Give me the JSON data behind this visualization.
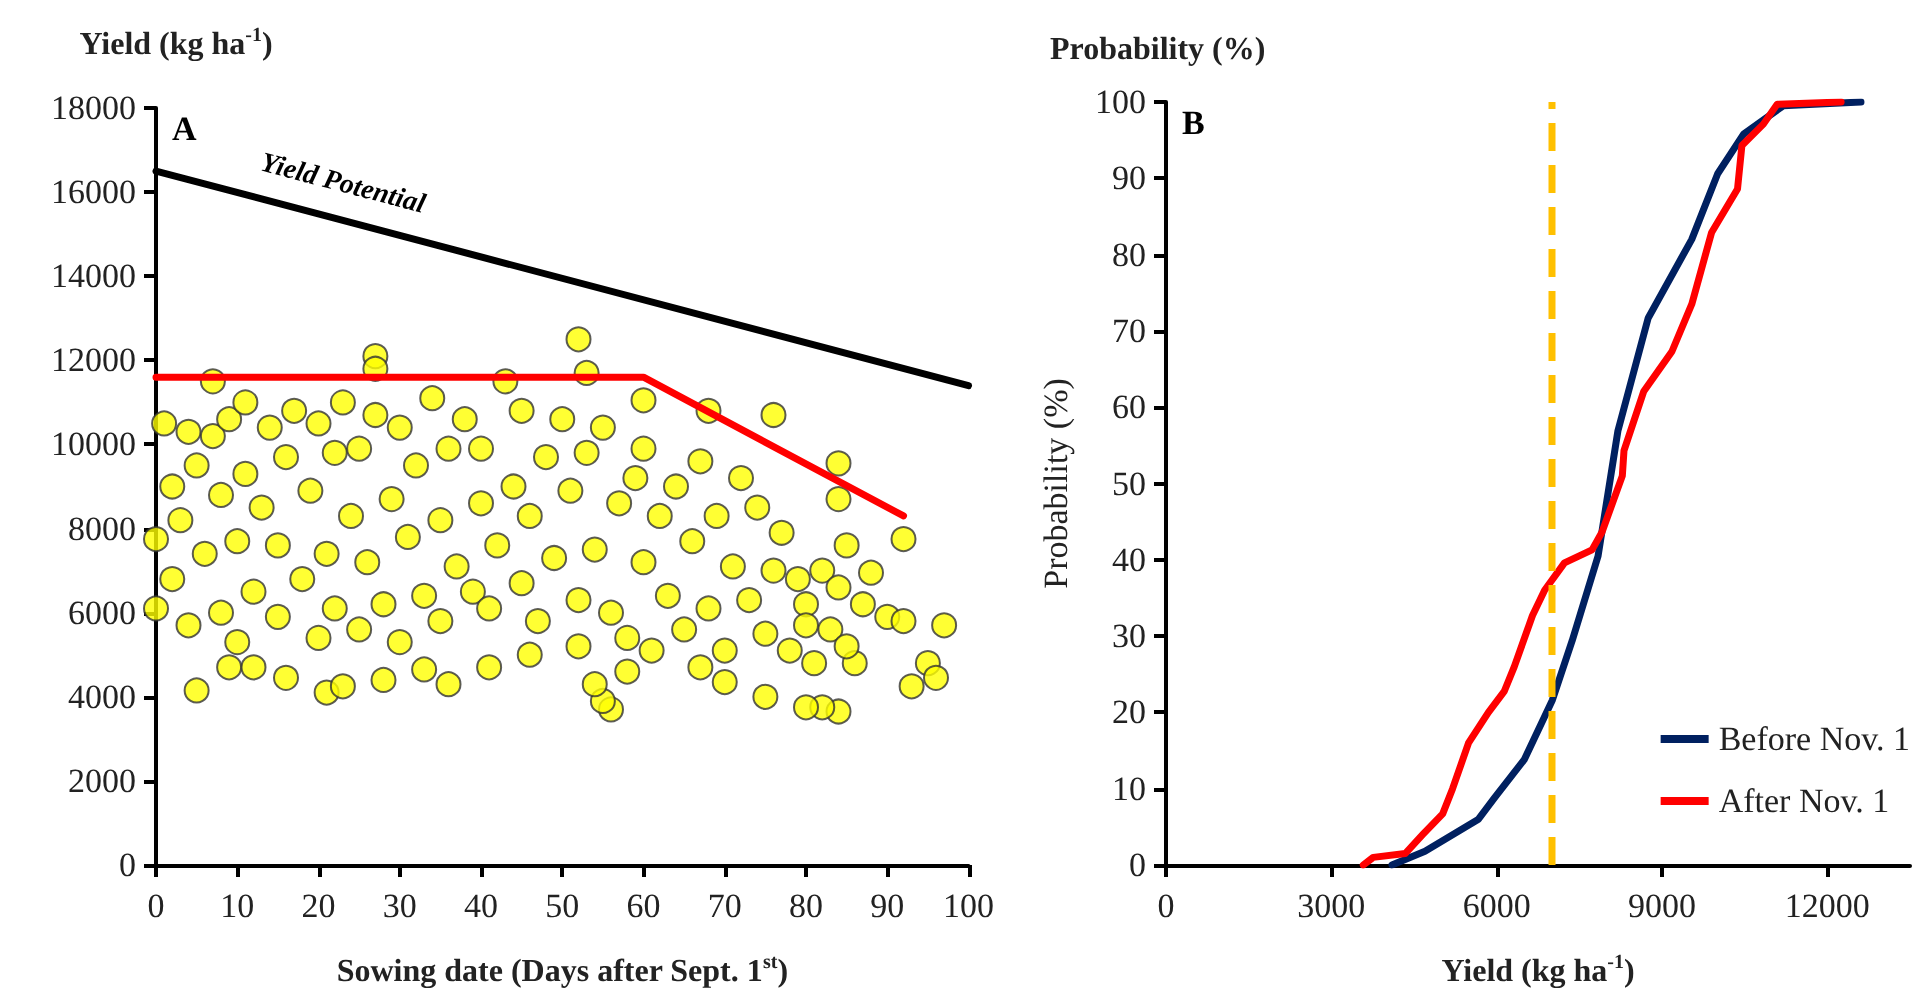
{
  "chart_data": [
    {
      "type": "scatter",
      "ylabel": "Yield (kg ha$^{-1}$)",
      "xlabel": "Sowing date (Days after Sept. 1$^{st}$)",
      "annotations": [
        "A"
      ],
      "xlim": [
        0,
        100
      ],
      "xticks": [
        0,
        10,
        20,
        30,
        40,
        50,
        60,
        70,
        80,
        90,
        100
      ],
      "ylim": [
        0,
        18000
      ],
      "yticks": [
        0,
        2000,
        4000,
        6000,
        8000,
        10000,
        12000,
        14000,
        16000,
        18000
      ],
      "grid": false,
      "legend": false,
      "marker": "circle",
      "series": [
        {
          "color": "#ffff00",
          "x": [
            5,
            0,
            0,
            27,
            27,
            52,
            53,
            7,
            60,
            68,
            76,
            84,
            92,
            97,
            93,
            95,
            96,
            90,
            92,
            88,
            86,
            84,
            82,
            80,
            75,
            56,
            55,
            41,
            36,
            21,
            23,
            16,
            9,
            12,
            28,
            33,
            46,
            58,
            70,
            67,
            1,
            2,
            2,
            3,
            4,
            4,
            5,
            6,
            7,
            8,
            8,
            9,
            10,
            10,
            11,
            11,
            12,
            13,
            14,
            15,
            15,
            16,
            17,
            18,
            19,
            20,
            20,
            21,
            22,
            22,
            23,
            24,
            25,
            25,
            26,
            27,
            28,
            29,
            30,
            30,
            31,
            32,
            33,
            34,
            35,
            35,
            36,
            37,
            38,
            39,
            40,
            40,
            41,
            42,
            43,
            44,
            45,
            45,
            46,
            47,
            48,
            49,
            50,
            51,
            52,
            52,
            53,
            54,
            54,
            55,
            56,
            57,
            58,
            59,
            60,
            60,
            61,
            62,
            63,
            64,
            65,
            66,
            67,
            68,
            69,
            70,
            71,
            72,
            73,
            74,
            75,
            76,
            77,
            78,
            79,
            80,
            81,
            82,
            83,
            84,
            85,
            85,
            87,
            84,
            80
          ],
          "values": [
            4150,
            7750,
            6100,
            12100,
            11800,
            12500,
            11700,
            11500,
            11050,
            10800,
            10700,
            9550,
            7750,
            5700,
            4250,
            4800,
            4450,
            5900,
            5800,
            6950,
            4800,
            3650,
            3750,
            3750,
            4000,
            3700,
            3900,
            4700,
            4300,
            4100,
            4250,
            4450,
            4700,
            4700,
            4400,
            4650,
            5000,
            4600,
            4350,
            4700,
            10500,
            9000,
            6800,
            8200,
            10300,
            5700,
            9500,
            7400,
            10200,
            6000,
            8800,
            10600,
            7700,
            5300,
            9300,
            11000,
            6500,
            8500,
            10400,
            5900,
            7600,
            9700,
            10800,
            6800,
            8900,
            5400,
            10500,
            7400,
            9800,
            6100,
            11000,
            8300,
            5600,
            9900,
            7200,
            10700,
            6200,
            8700,
            5300,
            10400,
            7800,
            9500,
            6400,
            11100,
            8200,
            5800,
            9900,
            7100,
            10600,
            6500,
            8600,
            9900,
            6100,
            7600,
            11500,
            9000,
            6700,
            10800,
            8300,
            5800,
            9700,
            7300,
            10600,
            8900,
            6300,
            5200,
            9800,
            4300,
            7500,
            10400,
            6000,
            8600,
            5400,
            9200,
            7200,
            9900,
            5100,
            8300,
            6400,
            9000,
            5600,
            7700,
            9600,
            6100,
            8300,
            5100,
            7100,
            9200,
            6300,
            8500,
            5500,
            7000,
            7900,
            5100,
            6800,
            6200,
            4800,
            7000,
            5600,
            6600,
            7600,
            5200,
            6200,
            8700,
            5700
          ]
        },
        {
          "type": "line",
          "name": "Yield Potential",
          "color": "#000000",
          "x": [
            0,
            100
          ],
          "values": [
            16500,
            11400
          ],
          "marker": "none"
        },
        {
          "type": "line",
          "color": "#ff0000",
          "x": [
            0,
            60,
            92
          ],
          "values": [
            11600,
            11600,
            8300
          ],
          "marker": "none"
        }
      ]
    },
    {
      "type": "line",
      "title": "Probability (%)",
      "ylabel": "Probability (%)",
      "xlabel": "Yield (kg ha$^{-1}$)",
      "annotations": [
        "B"
      ],
      "xlim": [
        0,
        13500
      ],
      "xticks": [
        0,
        3000,
        6000,
        9000,
        12000
      ],
      "ylim": [
        0,
        100
      ],
      "yticks": [
        0,
        10,
        20,
        30,
        40,
        50,
        60,
        70,
        80,
        90,
        100
      ],
      "grid": false,
      "legend": "bottom right",
      "marker": "none",
      "line_style": "solid",
      "ref_lines": [
        {
          "axis": "x",
          "value": 7000,
          "color": "#ffc000",
          "line_style": "dashed"
        }
      ],
      "series": [
        {
          "name": "Before Nov. 1",
          "color": "#002060",
          "x": [
            4100,
            4700,
            5670,
            5960,
            6500,
            7010,
            7370,
            7840,
            8200,
            8750,
            9540,
            10010,
            10480,
            11200,
            12610
          ],
          "values": [
            0,
            1.8,
            6,
            8.8,
            13.8,
            21.6,
            29.4,
            40.5,
            56.9,
            71.7,
            82,
            90.6,
            95.8,
            99.5,
            100
          ]
        },
        {
          "name": "After Nov. 1",
          "color": "#ff0000",
          "x": [
            3580,
            3760,
            4340,
            4660,
            5020,
            5200,
            5490,
            5850,
            6140,
            6320,
            6650,
            6870,
            7230,
            7730,
            7910,
            8280,
            8310,
            8670,
            9180,
            9540,
            9900,
            10370,
            10450,
            10840,
            11090,
            12250
          ],
          "values": [
            0,
            1,
            1.5,
            4,
            6.7,
            10,
            16,
            20,
            22.8,
            26,
            32.7,
            36,
            39.6,
            41.3,
            43.6,
            51,
            54.3,
            62.1,
            67.3,
            73.5,
            82.9,
            88.6,
            94.3,
            97.1,
            99.7,
            100
          ]
        }
      ]
    }
  ]
}
